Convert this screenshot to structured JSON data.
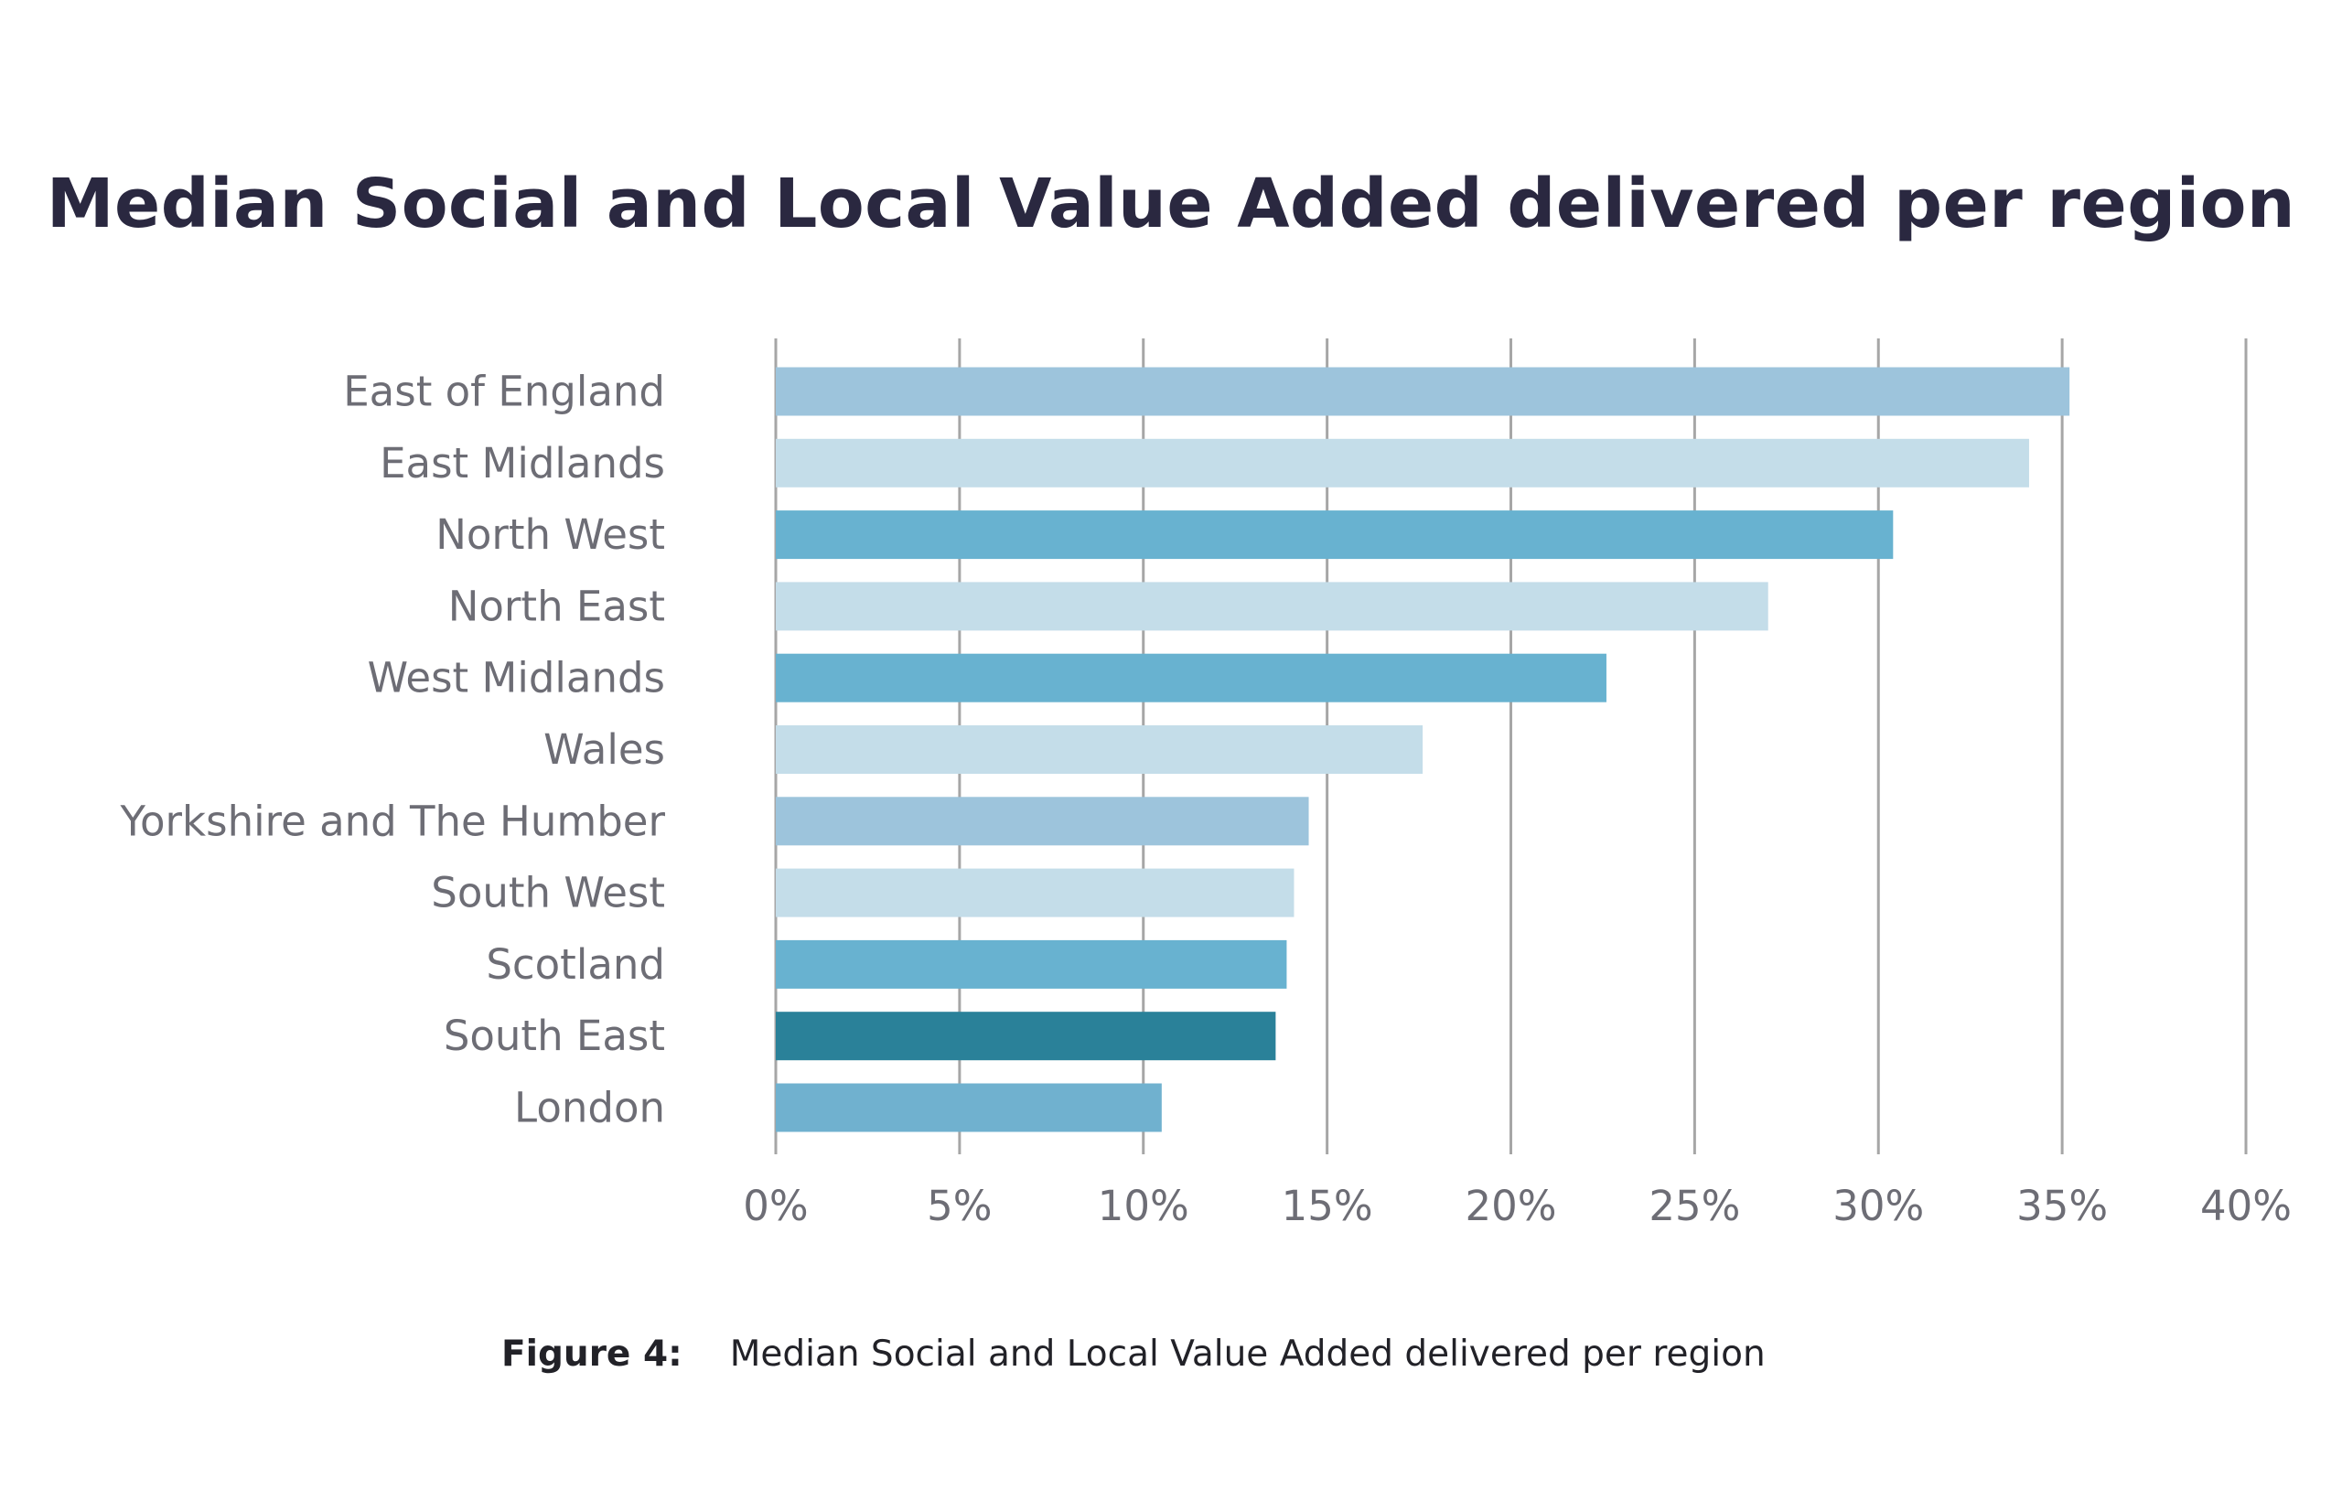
{
  "chart_data": {
    "type": "bar",
    "orientation": "horizontal",
    "title": "Median Social and Local  Value Added delivered per region",
    "xlabel": "",
    "ylabel": "",
    "xlim": [
      0,
      40
    ],
    "x_ticks": [
      "0%",
      "5%",
      "10%",
      "15%",
      "20%",
      "25%",
      "30%",
      "35%",
      "40%"
    ],
    "grid": true,
    "legend": "none",
    "categories": [
      "East of England",
      "East Midlands",
      "North West",
      "North East",
      "West Midlands",
      "Wales",
      "Yorkshire and The Humber",
      "South West",
      "Scotland",
      "South East",
      "London"
    ],
    "values": [
      35.2,
      34.1,
      30.4,
      27.0,
      22.6,
      17.6,
      14.5,
      14.1,
      13.9,
      13.6,
      10.5
    ],
    "colors": [
      "#9dc4dc",
      "#c4dde9",
      "#68b2d0",
      "#c4dde9",
      "#68b2d0",
      "#c4dde9",
      "#9dc4dc",
      "#c4dde9",
      "#68b2d0",
      "#2a8199",
      "#70b1cf"
    ]
  },
  "caption": {
    "label": "Figure 4:",
    "text": "Median Social and Local Value Added delivered per region"
  }
}
